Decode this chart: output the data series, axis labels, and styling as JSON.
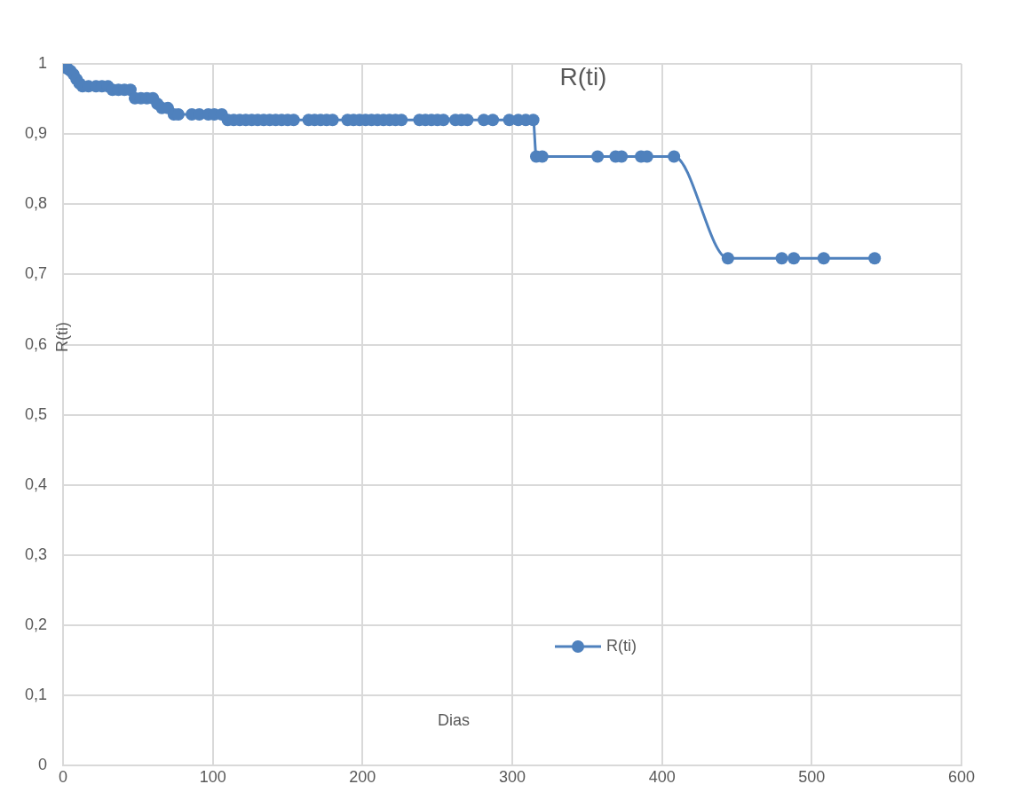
{
  "chart_data": {
    "type": "line",
    "title": "R(ti)",
    "xlabel": "Dias",
    "ylabel": "R(ti)",
    "xlim": [
      0,
      600
    ],
    "xticks": [
      0,
      100,
      200,
      300,
      400,
      500,
      600
    ],
    "ylim": [
      0,
      1
    ],
    "yticks": [
      {
        "value": 0,
        "label": "0"
      },
      {
        "value": 0.1,
        "label": "0,1"
      },
      {
        "value": 0.2,
        "label": "0,2"
      },
      {
        "value": 0.3,
        "label": "0,3"
      },
      {
        "value": 0.4,
        "label": "0,4"
      },
      {
        "value": 0.5,
        "label": "0,5"
      },
      {
        "value": 0.6,
        "label": "0,6"
      },
      {
        "value": 0.7,
        "label": "0,7"
      },
      {
        "value": 0.8,
        "label": "0,8"
      },
      {
        "value": 0.9,
        "label": "0,9"
      },
      {
        "value": 1,
        "label": "1"
      }
    ],
    "grid": true,
    "legend": "bottom",
    "marker": "circle",
    "line_style": "solid",
    "series": [
      {
        "name": "R(ti)",
        "color": "#4f81bd",
        "x": [
          0,
          1,
          2,
          3,
          5,
          7,
          9,
          11,
          13,
          17,
          22,
          26,
          30,
          33,
          37,
          41,
          45,
          48,
          52,
          56,
          60,
          63,
          66,
          70,
          74,
          77,
          86,
          91,
          97,
          101,
          106,
          110,
          114,
          118,
          122,
          126,
          130,
          134,
          138,
          142,
          146,
          150,
          154,
          164,
          168,
          172,
          176,
          180,
          190,
          194,
          198,
          202,
          206,
          210,
          214,
          218,
          222,
          226,
          238,
          242,
          246,
          250,
          254,
          262,
          266,
          270,
          281,
          287,
          298,
          304,
          309,
          314,
          316,
          320,
          357,
          369,
          373,
          386,
          390,
          408,
          444,
          480,
          488,
          508,
          542
        ],
        "values": [
          1,
          0.997,
          0.995,
          0.993,
          0.99,
          0.985,
          0.978,
          0.972,
          0.968,
          0.968,
          0.968,
          0.968,
          0.968,
          0.963,
          0.963,
          0.963,
          0.963,
          0.951,
          0.951,
          0.951,
          0.951,
          0.943,
          0.937,
          0.937,
          0.928,
          0.928,
          0.928,
          0.928,
          0.928,
          0.928,
          0.928,
          0.92,
          0.92,
          0.92,
          0.92,
          0.92,
          0.92,
          0.92,
          0.92,
          0.92,
          0.92,
          0.92,
          0.92,
          0.92,
          0.92,
          0.92,
          0.92,
          0.92,
          0.92,
          0.92,
          0.92,
          0.92,
          0.92,
          0.92,
          0.92,
          0.92,
          0.92,
          0.92,
          0.92,
          0.92,
          0.92,
          0.92,
          0.92,
          0.92,
          0.92,
          0.92,
          0.92,
          0.92,
          0.92,
          0.92,
          0.92,
          0.92,
          0.868,
          0.868,
          0.868,
          0.868,
          0.868,
          0.868,
          0.868,
          0.868,
          0.723,
          0.723,
          0.723,
          0.723,
          0.723
        ]
      }
    ]
  }
}
